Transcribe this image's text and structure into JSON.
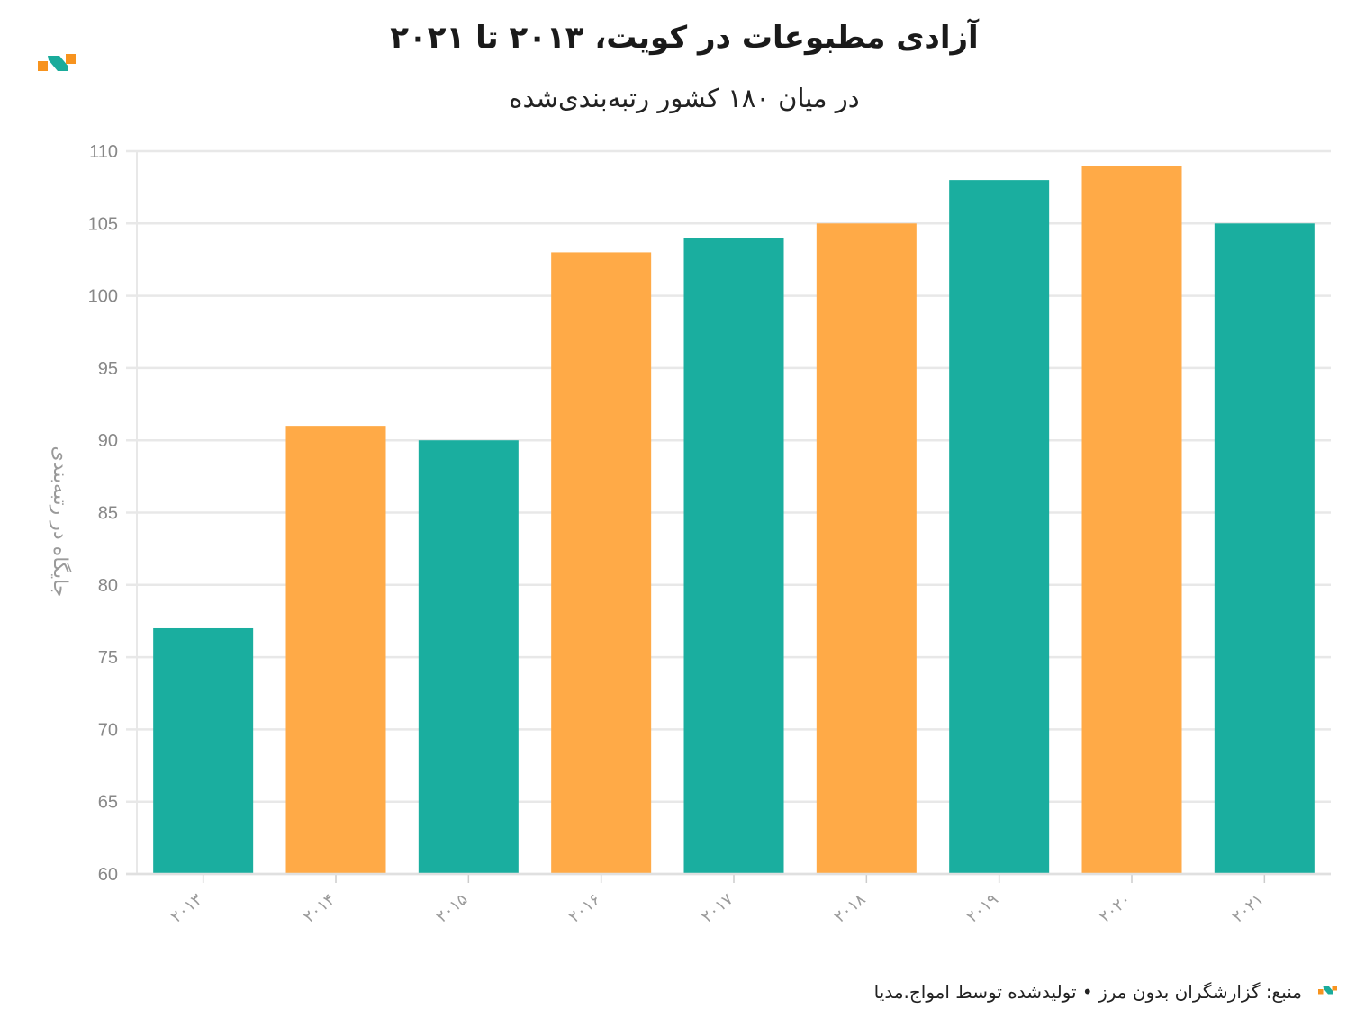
{
  "header": {
    "title": "آزادی مطبوعات در کویت، ۲۰۱۳ تا ۲۰۲۱",
    "subtitle": "در میان ۱۸۰ کشور رتبه‌بندی‌شده"
  },
  "footer": {
    "source": "منبع: گزارشگران بدون مرز • تولیدشده توسط امواج.مدیا"
  },
  "logo": {
    "icon": "amwaj-logo-icon",
    "orange": "#f7931e",
    "teal": "#1aab9b"
  },
  "colors": {
    "teal": "#1aae9f",
    "orange": "#ffaa47",
    "grid": "#e8e8e8"
  },
  "chart_data": {
    "type": "bar",
    "ylabel": "جایگاه در رتبه‌بندی",
    "ylim": [
      60,
      110
    ],
    "yticks": [
      60,
      65,
      70,
      75,
      80,
      85,
      90,
      95,
      100,
      105,
      110
    ],
    "grid": true,
    "categories": [
      "۲۰۱۳",
      "۲۰۱۴",
      "۲۰۱۵",
      "۲۰۱۶",
      "۲۰۱۷",
      "۲۰۱۸",
      "۲۰۱۹",
      "۲۰۲۰",
      "۲۰۲۱"
    ],
    "values": [
      77,
      91,
      90,
      103,
      104,
      105,
      108,
      109,
      105
    ],
    "bar_colors": [
      "#1aae9f",
      "#ffaa47",
      "#1aae9f",
      "#ffaa47",
      "#1aae9f",
      "#ffaa47",
      "#1aae9f",
      "#ffaa47",
      "#1aae9f"
    ]
  }
}
